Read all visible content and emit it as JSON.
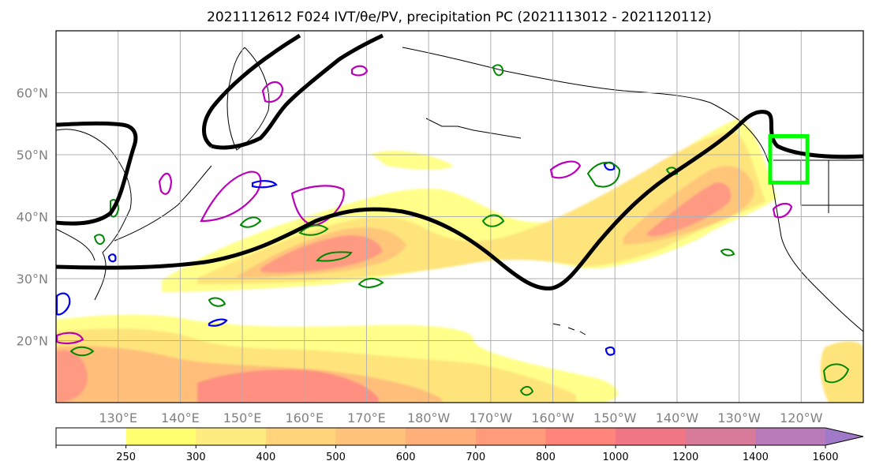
{
  "title": "2021112612 F024 IVT/θe/PV, precipitation PC (2021113012 - 2021120112)",
  "map": {
    "lat_labels": [
      "20°N",
      "30°N",
      "40°N",
      "50°N",
      "60°N"
    ],
    "lat_values": [
      20,
      30,
      40,
      50,
      60
    ],
    "lon_labels": [
      "130°E",
      "140°E",
      "150°E",
      "160°E",
      "170°E",
      "180°W",
      "170°W",
      "160°W",
      "150°W",
      "140°W",
      "130°W",
      "120°W"
    ],
    "lon_values": [
      130,
      140,
      150,
      160,
      170,
      180,
      190,
      200,
      210,
      220,
      230,
      240
    ],
    "lon_range": [
      120,
      250
    ],
    "lat_range": [
      10,
      70
    ],
    "gridlines": true,
    "box_color": "#00ff00",
    "box_bounds": {
      "lon": [
        235,
        241
      ],
      "lat": [
        45.5,
        53
      ]
    }
  },
  "colorbar": {
    "levels": [
      "250",
      "300",
      "400",
      "500",
      "600",
      "700",
      "800",
      "1000",
      "1200",
      "1400",
      "1600"
    ],
    "colors": [
      "#ffffff",
      "#ffff70",
      "#ffec80",
      "#ffd47a",
      "#ffc27a",
      "#ffb07a",
      "#ff9a7a",
      "#ff857a",
      "#f07585",
      "#d87a9a",
      "#b87ab8",
      "#a07ac8"
    ],
    "extend": "max"
  }
}
